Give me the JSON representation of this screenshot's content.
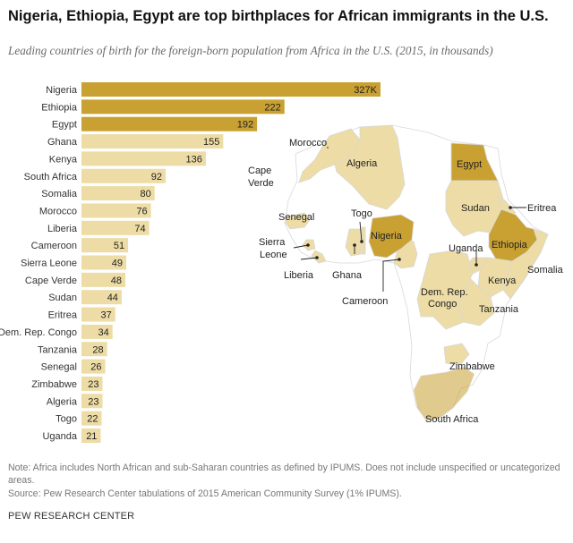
{
  "header": {
    "title": "Nigeria, Ethiopia, Egypt are top birthplaces for African immigrants in the U.S.",
    "subtitle": "Leading countries of birth for the foreign-born population from Africa in the U.S. (2015, in thousands)"
  },
  "footer": {
    "note": "Note: Africa includes North African and sub-Saharan countries as defined by IPUMS. Does not include unspecified or uncategorized areas.",
    "source": "Source: Pew Research Center tabulations of 2015 American Community Survey (1% IPUMS).",
    "org": "PEW RESEARCH CENTER"
  },
  "colors": {
    "dark": "#c9a032",
    "light": "#eddca5",
    "map_base": "#ffffff",
    "map_border": "#d8d8d8"
  },
  "chart_data": {
    "type": "bar",
    "orientation": "horizontal",
    "title": "Nigeria, Ethiopia, Egypt are top birthplaces for African immigrants in the U.S.",
    "subtitle": "Leading countries of birth for the foreign-born population from Africa in the U.S. (2015, in thousands)",
    "categories": [
      "Nigeria",
      "Ethiopia",
      "Egypt",
      "Ghana",
      "Kenya",
      "South Africa",
      "Somalia",
      "Morocco",
      "Liberia",
      "Cameroon",
      "Sierra Leone",
      "Cape Verde",
      "Sudan",
      "Eritrea",
      "Dem. Rep. Congo",
      "Tanzania",
      "Senegal",
      "Zimbabwe",
      "Algeria",
      "Togo",
      "Uganda"
    ],
    "values": [
      327,
      222,
      192,
      155,
      136,
      92,
      80,
      76,
      74,
      51,
      49,
      48,
      44,
      37,
      34,
      28,
      26,
      23,
      23,
      22,
      21
    ],
    "value_labels": [
      "327K",
      "222",
      "192",
      "155",
      "136",
      "92",
      "80",
      "76",
      "74",
      "51",
      "49",
      "48",
      "44",
      "37",
      "34",
      "28",
      "26",
      "23",
      "23",
      "22",
      "21"
    ],
    "highlight_top": 3,
    "xlim": [
      0,
      327
    ],
    "grid": false
  },
  "map": {
    "labels": [
      {
        "key": "morocco",
        "text": "Morocco"
      },
      {
        "key": "algeria",
        "text": "Algeria"
      },
      {
        "key": "egypt",
        "text": "Egypt"
      },
      {
        "key": "cape_verde_1",
        "text": "Cape"
      },
      {
        "key": "cape_verde_2",
        "text": "Verde"
      },
      {
        "key": "sudan",
        "text": "Sudan"
      },
      {
        "key": "eritrea",
        "text": "Eritrea"
      },
      {
        "key": "togo",
        "text": "Togo"
      },
      {
        "key": "senegal",
        "text": "Senegal"
      },
      {
        "key": "nigeria",
        "text": "Nigeria"
      },
      {
        "key": "ethiopia",
        "text": "Ethiopia"
      },
      {
        "key": "sierra_leone_1",
        "text": "Sierra"
      },
      {
        "key": "sierra_leone_2",
        "text": "Leone"
      },
      {
        "key": "uganda",
        "text": "Uganda"
      },
      {
        "key": "liberia",
        "text": "Liberia"
      },
      {
        "key": "ghana",
        "text": "Ghana"
      },
      {
        "key": "somalia",
        "text": "Somalia"
      },
      {
        "key": "kenya",
        "text": "Kenya"
      },
      {
        "key": "cameroon",
        "text": "Cameroon"
      },
      {
        "key": "drc_1",
        "text": "Dem. Rep."
      },
      {
        "key": "drc_2",
        "text": "Congo"
      },
      {
        "key": "tanzania",
        "text": "Tanzania"
      },
      {
        "key": "zimbabwe",
        "text": "Zimbabwe"
      },
      {
        "key": "south_africa",
        "text": "South Africa"
      }
    ]
  }
}
